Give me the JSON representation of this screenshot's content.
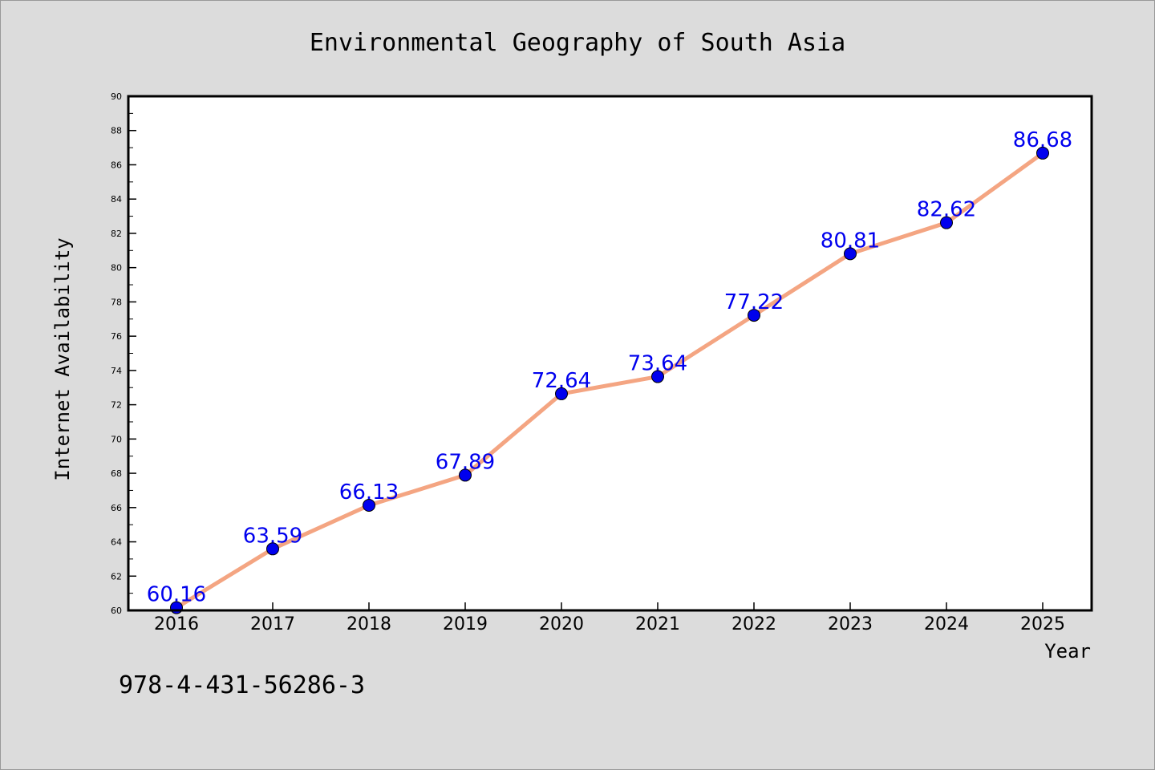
{
  "chart_data": {
    "type": "line",
    "title": "Environmental Geography of South Asia",
    "xlabel": "Year",
    "ylabel": "Internet Availability",
    "categories": [
      "2016",
      "2017",
      "2018",
      "2019",
      "2020",
      "2021",
      "2022",
      "2023",
      "2024",
      "2025"
    ],
    "series": [
      {
        "values": [
          60.16,
          63.59,
          66.13,
          67.89,
          72.64,
          73.64,
          77.22,
          80.81,
          82.62,
          86.68
        ],
        "labels": [
          "60.16",
          "63.59",
          "66.13",
          "67.89",
          "72.64",
          "73.64",
          "77.22",
          "80.81",
          "82.62",
          "86.68"
        ],
        "line_color": "#f4a582",
        "marker_color": "#0000ee",
        "label_color": "#0000ee"
      }
    ],
    "ylim": [
      60,
      90
    ],
    "yticks": [
      "60",
      "62",
      "64",
      "66",
      "68",
      "70",
      "72",
      "74",
      "76",
      "78",
      "80",
      "82",
      "84",
      "86",
      "88",
      "90"
    ],
    "grid": false,
    "legend": "none"
  },
  "footnote": "978-4-431-56286-3",
  "colors": {
    "background": "#dcdcdc",
    "plot_background": "#ffffff",
    "axis": "#000000"
  }
}
